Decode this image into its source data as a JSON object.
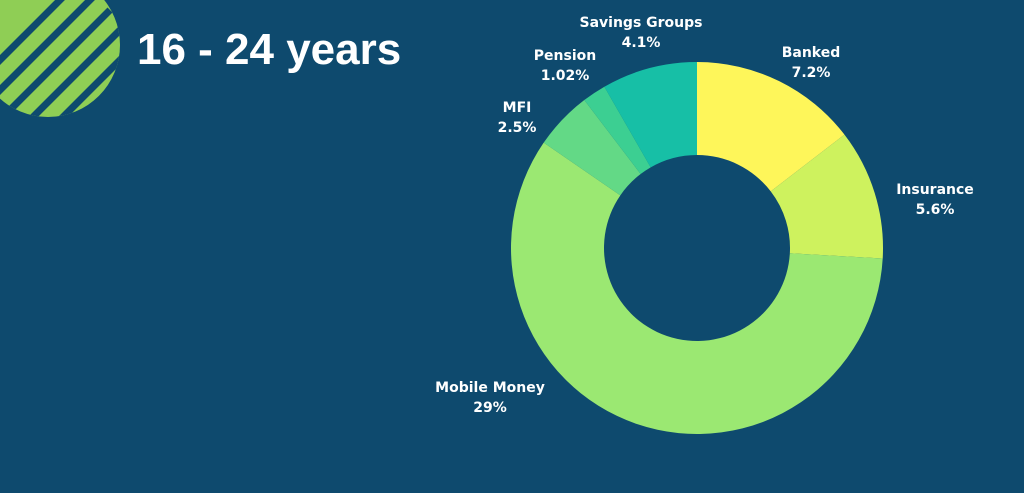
{
  "header": {
    "title": "16 - 24 years"
  },
  "colors": {
    "background": "#0e4a6e",
    "decoration": "#8fce55"
  },
  "chart_data": {
    "type": "pie",
    "title": "",
    "categories": [
      "Banked",
      "Insurance",
      "Mobile Money",
      "MFI",
      "Pension",
      "Savings Groups"
    ],
    "values": [
      7.2,
      5.6,
      29,
      2.5,
      1.02,
      4.1
    ],
    "labels": [
      "7.2%",
      "5.6%",
      "29%",
      "2.5%",
      "1.02%",
      "4.1%"
    ],
    "colors": [
      "#fef65a",
      "#cef25e",
      "#9be872",
      "#63d986",
      "#3ccf92",
      "#17bfa6"
    ],
    "legend": "none",
    "style": "donut"
  }
}
